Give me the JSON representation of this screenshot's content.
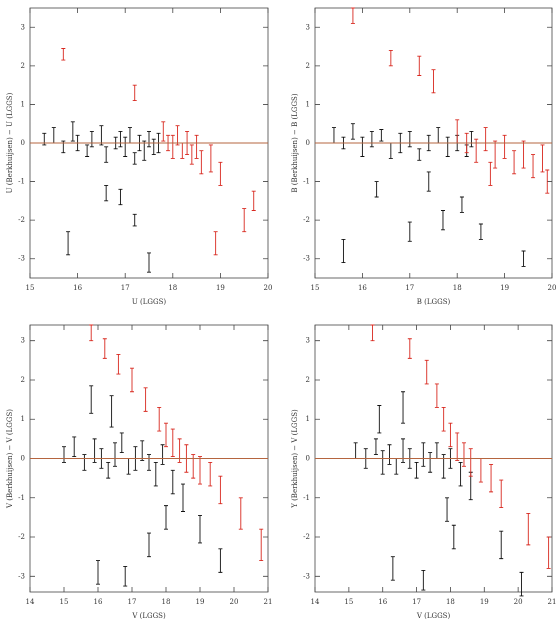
{
  "chart_data": [
    {
      "type": "scatter",
      "xlabel": "U (LGGS)",
      "ylabel": "U (Berkhuijsen) − U (LGGS)",
      "xlim": [
        15,
        20
      ],
      "ylim": [
        -3.5,
        3.5
      ],
      "xticks": [
        15,
        16,
        17,
        18,
        19,
        20
      ],
      "yticks": [
        -3,
        -2,
        -1,
        0,
        1,
        2,
        3
      ],
      "hline": {
        "value": 0,
        "color": "#b5653f"
      },
      "series": [
        {
          "color": "#111111",
          "x": [
            15.3,
            15.5,
            15.7,
            15.9,
            16.0,
            16.2,
            16.3,
            16.5,
            16.6,
            16.8,
            16.9,
            17.0,
            17.1,
            17.2,
            17.3,
            17.4,
            17.5,
            17.6,
            17.7,
            15.8,
            16.6,
            17.2,
            17.5,
            16.9
          ],
          "values": [
            0.1,
            0.2,
            -0.1,
            0.3,
            0.0,
            -0.2,
            0.1,
            0.2,
            -0.3,
            0.0,
            0.1,
            -0.1,
            0.2,
            -0.4,
            0.0,
            -0.2,
            0.1,
            -0.1,
            0.0,
            -2.6,
            -1.3,
            -2.0,
            -3.1,
            -1.4
          ],
          "errors": [
            0.15,
            0.2,
            0.15,
            0.25,
            0.2,
            0.15,
            0.2,
            0.25,
            0.2,
            0.15,
            0.2,
            0.25,
            0.2,
            0.15,
            0.2,
            0.25,
            0.2,
            0.2,
            0.25,
            0.3,
            0.2,
            0.15,
            0.25,
            0.2
          ]
        },
        {
          "color": "#d8281f",
          "x": [
            15.7,
            17.2,
            17.8,
            17.9,
            18.0,
            18.1,
            18.2,
            18.3,
            18.4,
            18.5,
            18.6,
            18.8,
            19.0,
            19.5,
            19.7,
            18.9
          ],
          "values": [
            2.3,
            1.3,
            0.3,
            0.0,
            -0.1,
            0.2,
            -0.2,
            0.0,
            -0.3,
            -0.1,
            -0.5,
            -0.4,
            -0.8,
            -2.0,
            -1.5,
            -2.6
          ],
          "errors": [
            0.15,
            0.2,
            0.25,
            0.2,
            0.3,
            0.25,
            0.2,
            0.3,
            0.25,
            0.3,
            0.3,
            0.35,
            0.3,
            0.3,
            0.25,
            0.3
          ]
        }
      ]
    },
    {
      "type": "scatter",
      "xlabel": "B (LGGS)",
      "ylabel": "B (Berkhuijsen) − B (LGGS)",
      "xlim": [
        15,
        20
      ],
      "ylim": [
        -3.5,
        3.5
      ],
      "xticks": [
        15,
        16,
        17,
        18,
        19,
        20
      ],
      "yticks": [
        -3,
        -2,
        -1,
        0,
        1,
        2,
        3
      ],
      "hline": {
        "value": 0,
        "color": "#b5653f"
      },
      "series": [
        {
          "color": "#111111",
          "x": [
            15.4,
            15.6,
            15.8,
            16.0,
            16.2,
            16.4,
            16.6,
            16.8,
            17.0,
            17.2,
            17.4,
            17.6,
            17.8,
            18.0,
            18.2,
            18.3,
            15.6,
            17.0,
            18.5,
            19.4,
            17.4,
            16.3,
            17.7,
            18.1
          ],
          "values": [
            0.2,
            0.0,
            0.3,
            -0.1,
            0.1,
            0.2,
            -0.2,
            0.0,
            0.1,
            -0.3,
            0.0,
            0.2,
            -0.1,
            0.0,
            -0.2,
            0.1,
            -2.8,
            -2.3,
            -2.3,
            -3.0,
            -1.0,
            -1.2,
            -2.0,
            -1.6
          ],
          "errors": [
            0.2,
            0.15,
            0.2,
            0.25,
            0.2,
            0.15,
            0.2,
            0.25,
            0.2,
            0.15,
            0.2,
            0.2,
            0.25,
            0.2,
            0.15,
            0.2,
            0.3,
            0.25,
            0.2,
            0.2,
            0.25,
            0.2,
            0.25,
            0.2
          ]
        },
        {
          "color": "#d8281f",
          "x": [
            15.8,
            16.6,
            17.2,
            17.5,
            18.0,
            18.2,
            18.4,
            18.6,
            18.8,
            19.0,
            19.2,
            19.4,
            19.6,
            19.8,
            19.9,
            18.7
          ],
          "values": [
            3.3,
            2.2,
            2.0,
            1.6,
            0.3,
            0.0,
            -0.2,
            0.1,
            -0.3,
            -0.1,
            -0.5,
            -0.3,
            -0.6,
            -0.4,
            -1.0,
            -0.8
          ],
          "errors": [
            0.2,
            0.2,
            0.25,
            0.3,
            0.3,
            0.25,
            0.3,
            0.3,
            0.35,
            0.3,
            0.3,
            0.35,
            0.3,
            0.35,
            0.3,
            0.3
          ]
        }
      ]
    },
    {
      "type": "scatter",
      "xlabel": "V (LGGS)",
      "ylabel": "V (Berkhuijsen) − V (LGGS)",
      "xlim": [
        14,
        21
      ],
      "ylim": [
        -3.4,
        3.4
      ],
      "xticks": [
        14,
        15,
        16,
        17,
        18,
        19,
        20,
        21
      ],
      "yticks": [
        -3,
        -2,
        -1,
        0,
        1,
        2,
        3
      ],
      "hline": {
        "value": 0,
        "color": "#b5653f"
      },
      "series": [
        {
          "color": "#111111",
          "x": [
            15.0,
            15.3,
            15.6,
            15.9,
            16.1,
            16.3,
            16.5,
            16.7,
            16.9,
            17.1,
            17.3,
            17.5,
            17.7,
            17.9,
            18.2,
            18.5,
            16.0,
            16.8,
            17.5,
            19.0,
            19.6,
            16.4,
            15.8,
            18.0
          ],
          "values": [
            0.1,
            0.3,
            -0.1,
            0.2,
            0.0,
            -0.3,
            0.1,
            0.4,
            -0.2,
            0.0,
            0.2,
            -0.1,
            -0.4,
            0.1,
            -0.6,
            -1.0,
            -2.9,
            -3.0,
            -2.2,
            -1.8,
            -2.6,
            1.2,
            1.5,
            -1.5
          ],
          "errors": [
            0.2,
            0.25,
            0.2,
            0.3,
            0.25,
            0.2,
            0.3,
            0.25,
            0.2,
            0.3,
            0.25,
            0.2,
            0.3,
            0.25,
            0.3,
            0.35,
            0.3,
            0.25,
            0.3,
            0.35,
            0.3,
            0.4,
            0.35,
            0.3
          ]
        },
        {
          "color": "#d8281f",
          "x": [
            15.8,
            16.2,
            16.6,
            17.0,
            17.4,
            17.8,
            18.0,
            18.2,
            18.4,
            18.6,
            18.8,
            19.0,
            19.3,
            19.6,
            20.2,
            20.8
          ],
          "values": [
            3.2,
            2.8,
            2.4,
            2.0,
            1.5,
            1.0,
            0.6,
            0.4,
            0.2,
            0.0,
            -0.2,
            -0.3,
            -0.4,
            -0.8,
            -1.4,
            -2.2
          ],
          "errors": [
            0.2,
            0.25,
            0.25,
            0.3,
            0.3,
            0.3,
            0.3,
            0.35,
            0.3,
            0.35,
            0.3,
            0.35,
            0.3,
            0.35,
            0.4,
            0.4
          ]
        }
      ]
    },
    {
      "type": "scatter",
      "xlabel": "V (LGGS)",
      "ylabel": "Y (Berkhuijsen) − V (LGGS)",
      "xlim": [
        14,
        21
      ],
      "ylim": [
        -3.4,
        3.4
      ],
      "xticks": [
        14,
        15,
        16,
        17,
        18,
        19,
        20,
        21
      ],
      "yticks": [
        -3,
        -2,
        -1,
        0,
        1,
        2,
        3
      ],
      "hline": {
        "value": 0,
        "color": "#b5653f"
      },
      "series": [
        {
          "color": "#111111",
          "x": [
            15.2,
            15.5,
            15.8,
            16.0,
            16.2,
            16.4,
            16.6,
            16.8,
            17.0,
            17.2,
            17.4,
            17.6,
            17.8,
            18.0,
            18.3,
            18.6,
            16.3,
            17.2,
            18.1,
            19.5,
            20.1,
            16.6,
            15.9,
            17.9
          ],
          "values": [
            0.2,
            0.0,
            0.3,
            -0.1,
            0.1,
            -0.2,
            0.2,
            0.0,
            -0.3,
            0.1,
            -0.1,
            0.2,
            -0.2,
            0.0,
            -0.4,
            -0.7,
            -2.8,
            -3.1,
            -2.0,
            -2.2,
            -3.2,
            1.3,
            1.0,
            -1.3
          ],
          "errors": [
            0.2,
            0.25,
            0.2,
            0.3,
            0.25,
            0.2,
            0.3,
            0.25,
            0.2,
            0.3,
            0.25,
            0.2,
            0.3,
            0.25,
            0.3,
            0.35,
            0.3,
            0.25,
            0.3,
            0.35,
            0.3,
            0.4,
            0.35,
            0.3
          ]
        },
        {
          "color": "#d8281f",
          "x": [
            15.7,
            16.8,
            17.3,
            17.6,
            17.8,
            18.0,
            18.2,
            18.4,
            18.6,
            18.9,
            19.2,
            19.5,
            20.3,
            20.9
          ],
          "values": [
            3.2,
            2.8,
            2.2,
            1.6,
            1.0,
            0.6,
            0.3,
            0.1,
            -0.1,
            -0.3,
            -0.5,
            -0.9,
            -1.8,
            -2.4
          ],
          "errors": [
            0.2,
            0.25,
            0.3,
            0.3,
            0.3,
            0.3,
            0.35,
            0.3,
            0.35,
            0.3,
            0.35,
            0.35,
            0.4,
            0.4
          ]
        }
      ]
    }
  ]
}
